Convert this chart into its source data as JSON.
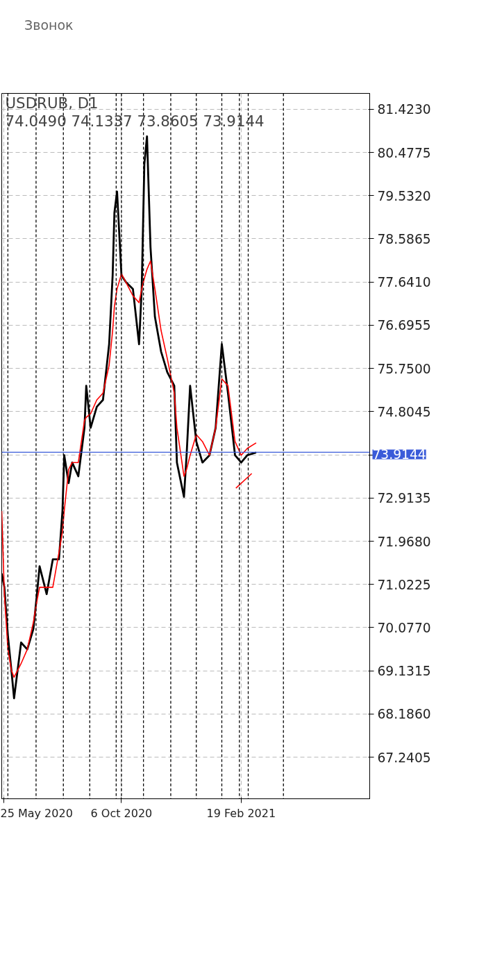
{
  "chart_data": {
    "type": "line",
    "title": "USDRUB, D1",
    "subtitle": "74.0490 74.1337 73.8605 73.9144",
    "annotations": [
      "Звонок"
    ],
    "x": [
      "2020-05-23",
      "2020-05-26",
      "2020-05-30",
      "2020-06-03",
      "2020-06-06",
      "2020-06-10",
      "2020-06-14",
      "2020-06-21",
      "2020-06-28",
      "2020-07-02",
      "2020-07-05",
      "2020-07-13",
      "2020-07-20",
      "2020-07-27",
      "2020-07-31",
      "2020-08-02",
      "2020-08-07",
      "2020-08-11",
      "2020-08-18",
      "2020-08-25",
      "2020-08-27",
      "2020-09-01",
      "2020-09-08",
      "2020-09-15",
      "2020-09-22",
      "2020-09-26",
      "2020-09-28",
      "2020-10-01",
      "2020-10-06",
      "2020-10-11",
      "2020-10-19",
      "2020-10-26",
      "2020-10-29",
      "2020-11-01",
      "2020-11-04",
      "2020-11-08",
      "2020-11-13",
      "2020-11-20",
      "2020-11-27",
      "2020-12-05",
      "2020-12-08",
      "2020-12-16",
      "2020-12-19",
      "2020-12-23",
      "2020-12-30",
      "2021-01-06",
      "2021-01-14",
      "2021-01-21",
      "2021-01-28",
      "2021-02-04",
      "2021-02-12",
      "2021-02-19",
      "2021-02-26",
      "2021-03-08"
    ],
    "series": [
      {
        "color": "#000000",
        "values": [
          71.26,
          70.96,
          69.9,
          69.14,
          68.53,
          69.14,
          69.75,
          69.6,
          70.05,
          70.81,
          71.42,
          70.81,
          71.57,
          71.57,
          72.63,
          73.85,
          73.24,
          73.69,
          73.39,
          74.45,
          75.37,
          74.45,
          74.91,
          75.06,
          76.28,
          77.79,
          79.16,
          79.62,
          77.79,
          77.64,
          77.49,
          76.28,
          77.49,
          80.22,
          80.83,
          78.4,
          76.88,
          76.12,
          75.67,
          75.37,
          73.69,
          72.94,
          73.85,
          75.37,
          74.15,
          73.69,
          73.85,
          74.45,
          76.28,
          75.21,
          73.85,
          73.69,
          73.85,
          73.91
        ]
      },
      {
        "color": "#ff0000",
        "values": [
          72.63,
          70.81,
          69.6,
          69.14,
          68.99,
          69.14,
          69.29,
          69.6,
          70.2,
          70.66,
          70.96,
          70.96,
          70.96,
          71.72,
          72.18,
          72.63,
          73.54,
          73.69,
          73.69,
          74.61,
          74.68,
          74.76,
          75.06,
          75.21,
          75.82,
          76.58,
          77.11,
          77.49,
          77.82,
          77.64,
          77.34,
          77.19,
          77.49,
          77.72,
          77.92,
          78.1,
          77.49,
          76.58,
          75.97,
          75.21,
          74.45,
          73.39,
          73.54,
          73.85,
          74.3,
          74.15,
          73.85,
          74.45,
          75.52,
          75.37,
          74.15,
          73.85,
          74.0,
          74.12
        ]
      },
      {
        "color": "#ff0000",
        "x": [
          "2021-02-13",
          "2021-03-03"
        ],
        "values": [
          73.13,
          73.45
        ]
      }
    ],
    "xlim": [
      "2020-05-23",
      "2021-07-15"
    ],
    "xticks": [
      {
        "value": "2020-05-25",
        "label": "25 May 2020"
      },
      {
        "value": "2020-10-06",
        "label": "6 Oct 2020"
      },
      {
        "value": "2021-02-19",
        "label": "19 Feb 2021"
      }
    ],
    "ylim": [
      66.33,
      81.77
    ],
    "yticks": [
      {
        "value": 67.2405,
        "label": "67.2405"
      },
      {
        "value": 68.186,
        "label": "68.1860"
      },
      {
        "value": 69.1315,
        "label": "69.1315"
      },
      {
        "value": 70.077,
        "label": "70.0770"
      },
      {
        "value": 71.0225,
        "label": "71.0225"
      },
      {
        "value": 71.968,
        "label": "71.9680"
      },
      {
        "value": 72.9135,
        "label": "72.9135"
      },
      {
        "value": 73.859,
        "label": null
      },
      {
        "value": 74.8045,
        "label": "74.8045"
      },
      {
        "value": 75.75,
        "label": "75.7500"
      },
      {
        "value": 76.6955,
        "label": "76.6955"
      },
      {
        "value": 77.641,
        "label": "77.6410"
      },
      {
        "value": 78.5865,
        "label": "78.5865"
      },
      {
        "value": 79.532,
        "label": "79.5320"
      },
      {
        "value": 80.4775,
        "label": "80.4775"
      },
      {
        "value": 81.423,
        "label": "81.4230"
      }
    ],
    "ref_lines": [
      {
        "axis": "y",
        "value": 73.9144,
        "label": "73.9144",
        "color": "#3a5bd9",
        "line_style": "solid"
      },
      {
        "axis": "x",
        "value": "2020-05-30",
        "color": "#000000",
        "line_style": "dashed"
      },
      {
        "axis": "x",
        "value": "2020-07-01",
        "color": "#000000",
        "line_style": "dashed"
      },
      {
        "axis": "x",
        "value": "2020-08-01",
        "color": "#000000",
        "line_style": "dashed"
      },
      {
        "axis": "x",
        "value": "2020-08-31",
        "color": "#000000",
        "line_style": "dashed"
      },
      {
        "axis": "x",
        "value": "2020-09-30",
        "color": "#000000",
        "line_style": "dashed"
      },
      {
        "axis": "x",
        "value": "2020-10-06",
        "color": "#000000",
        "line_style": "dashed"
      },
      {
        "axis": "x",
        "value": "2020-10-31",
        "color": "#000000",
        "line_style": "dashed"
      },
      {
        "axis": "x",
        "value": "2020-12-01",
        "color": "#000000",
        "line_style": "dashed"
      },
      {
        "axis": "x",
        "value": "2020-12-30",
        "color": "#000000",
        "line_style": "dashed"
      },
      {
        "axis": "x",
        "value": "2021-01-28",
        "color": "#000000",
        "line_style": "dashed"
      },
      {
        "axis": "x",
        "value": "2021-02-17",
        "color": "#000000",
        "line_style": "dashed"
      },
      {
        "axis": "x",
        "value": "2021-02-27",
        "color": "#000000",
        "line_style": "dashed"
      },
      {
        "axis": "x",
        "value": "2021-04-08",
        "color": "#000000",
        "line_style": "dashed"
      }
    ],
    "grid": true,
    "marker": "none",
    "line_style": "solid"
  }
}
